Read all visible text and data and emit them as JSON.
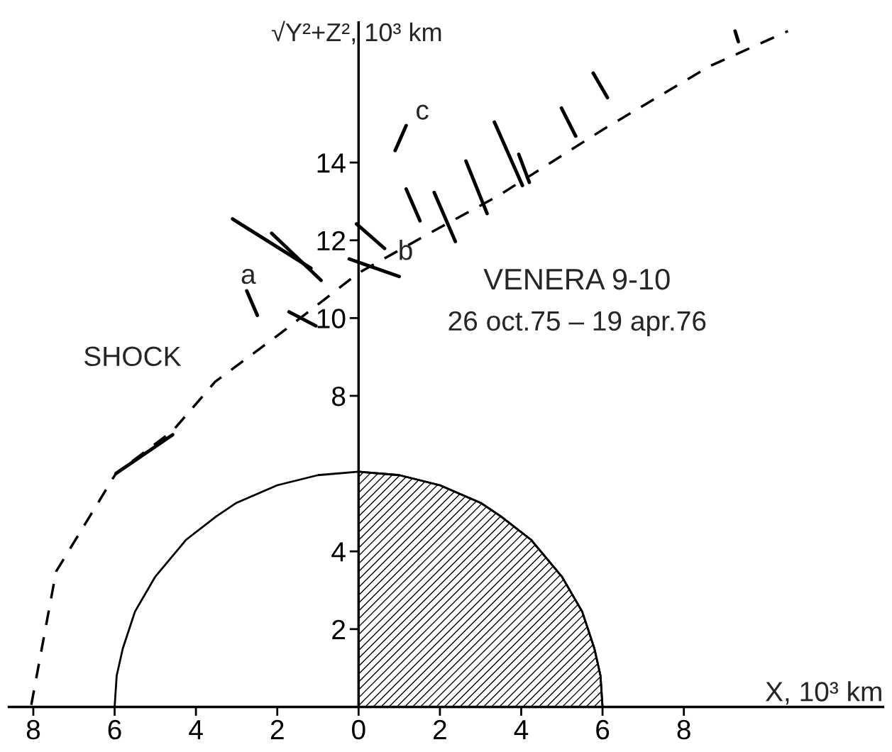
{
  "chart_data": {
    "type": "line",
    "title": "VENERA 9-10",
    "subtitle": "26 oct.75 – 19 apr.76",
    "xlabel": "X, 10³ km",
    "ylabel": "√Y²+Z², 10³ km",
    "xlim": [
      -8.6,
      12.9
    ],
    "ylim": [
      0,
      17.6
    ],
    "xticks": [
      {
        "value": -8,
        "label": "8"
      },
      {
        "value": -6,
        "label": "6"
      },
      {
        "value": -4,
        "label": "4"
      },
      {
        "value": -2,
        "label": "2"
      },
      0,
      2,
      4,
      6,
      8
    ],
    "yticks": [
      2,
      4,
      8,
      10,
      12,
      14
    ],
    "grid": false,
    "legend": false,
    "annotations": [
      "SHOCK",
      "a",
      "b",
      "c"
    ],
    "series": [
      {
        "type": "line",
        "line_style": "dashed",
        "color": "#000000",
        "x": [
          -8.05,
          -7.44,
          -5.97,
          -4.57,
          -3.53,
          -1.79,
          0,
          1.69,
          3.43,
          6.03,
          8.64,
          10.56
        ],
        "values": [
          0.05,
          3.48,
          6.0,
          7.1,
          8.36,
          9.71,
          11.16,
          12.15,
          13.14,
          14.86,
          16.48,
          17.38
        ]
      },
      {
        "type": "line",
        "line_style": "solid",
        "color": "#000000",
        "x": [
          -6.0,
          -5.95,
          -5.8,
          -5.5,
          -5.0,
          -4.24,
          -3.5,
          -3.0,
          -2.0,
          -1.0,
          0,
          1.0,
          2.0,
          3.0,
          3.5,
          4.24,
          5.0,
          5.5,
          5.8,
          5.95,
          6.0
        ],
        "values": [
          0,
          0.8,
          1.5,
          2.45,
          3.35,
          4.3,
          4.9,
          5.25,
          5.7,
          5.96,
          6.05,
          5.96,
          5.7,
          5.25,
          4.9,
          4.3,
          3.35,
          2.45,
          1.5,
          0.8,
          0
        ]
      },
      {
        "type": "area",
        "line_style": "solid",
        "color": "#000000",
        "x": [
          0,
          1.0,
          2.0,
          3.0,
          3.5,
          4.24,
          5.0,
          5.5,
          5.8,
          5.95,
          6.0
        ],
        "values": [
          6.05,
          5.96,
          5.7,
          5.25,
          4.9,
          4.3,
          3.35,
          2.45,
          1.5,
          0.8,
          0
        ]
      },
      {
        "type": "line",
        "line_style": "solid",
        "color": "#000000",
        "x": [
          -5.97,
          -4.57
        ],
        "values": [
          6.0,
          7.0
        ]
      },
      {
        "type": "line",
        "line_style": "solid",
        "color": "#000000",
        "x": [
          -3.1,
          -1.17
        ],
        "values": [
          12.55,
          11.28
        ]
      },
      {
        "type": "line",
        "line_style": "solid",
        "color": "#000000",
        "x": [
          -2.14,
          -0.92
        ],
        "values": [
          12.18,
          10.97
        ]
      },
      {
        "type": "line",
        "line_style": "solid",
        "color": "#000000",
        "x": [
          -0.05,
          0.64
        ],
        "values": [
          12.42,
          11.79
        ]
      },
      {
        "type": "line",
        "line_style": "solid",
        "color": "#000000",
        "x": [
          -0.23,
          1.0
        ],
        "values": [
          11.52,
          11.07
        ]
      },
      {
        "type": "line",
        "line_style": "solid",
        "color": "#000000",
        "x": [
          0.9,
          1.17
        ],
        "values": [
          14.31,
          14.95
        ]
      },
      {
        "type": "line",
        "line_style": "solid",
        "color": "#000000",
        "x": [
          -2.75,
          -2.49
        ],
        "values": [
          10.7,
          10.07
        ]
      },
      {
        "type": "line",
        "line_style": "solid",
        "color": "#000000",
        "x": [
          1.17,
          1.51
        ],
        "values": [
          13.32,
          12.5
        ]
      },
      {
        "type": "line",
        "line_style": "solid",
        "color": "#000000",
        "x": [
          1.86,
          2.38
        ],
        "values": [
          13.23,
          11.97
        ]
      },
      {
        "type": "line",
        "line_style": "solid",
        "color": "#000000",
        "x": [
          2.64,
          3.16
        ],
        "values": [
          14.04,
          12.69
        ]
      },
      {
        "type": "line",
        "line_style": "solid",
        "color": "#000000",
        "x": [
          3.34,
          4.03
        ],
        "values": [
          15.04,
          13.41
        ]
      },
      {
        "type": "line",
        "line_style": "solid",
        "color": "#000000",
        "x": [
          3.94,
          4.2
        ],
        "values": [
          14.21,
          13.49
        ]
      },
      {
        "type": "line",
        "line_style": "solid",
        "color": "#000000",
        "x": [
          4.99,
          5.34
        ],
        "values": [
          15.4,
          14.68
        ]
      },
      {
        "type": "line",
        "line_style": "solid",
        "color": "#000000",
        "x": [
          5.77,
          6.12
        ],
        "values": [
          16.3,
          15.67
        ]
      },
      {
        "type": "line",
        "line_style": "solid",
        "color": "#000000",
        "x": [
          9.26,
          9.34
        ],
        "values": [
          17.38,
          17.11
        ]
      },
      {
        "type": "line",
        "line_style": "solid",
        "color": "#000000",
        "x": [
          -1.71,
          -1.05
        ],
        "values": [
          10.16,
          9.8
        ]
      }
    ]
  }
}
